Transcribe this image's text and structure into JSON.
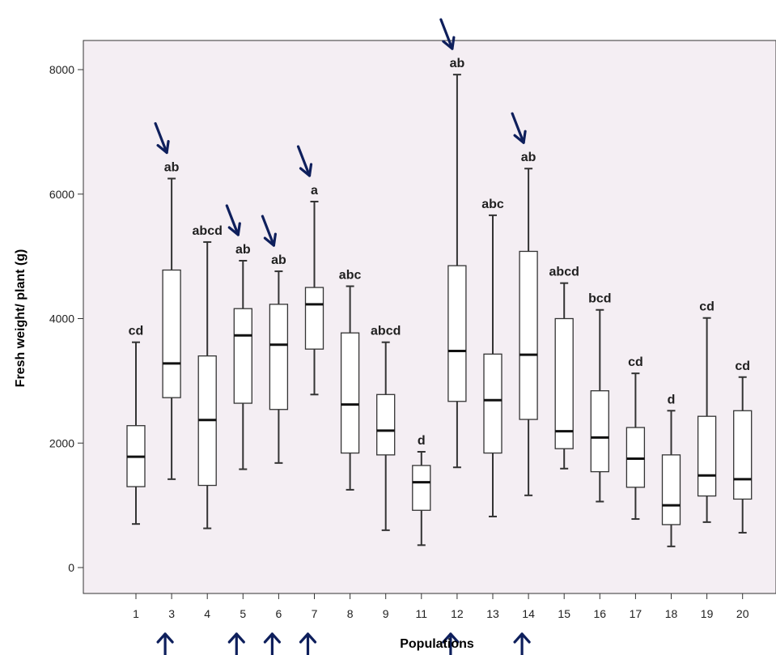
{
  "chart_data": {
    "type": "boxplot",
    "title": "",
    "xlabel": "Populations",
    "ylabel": "Fresh weight/ plant (g)",
    "ylim": [
      -400,
      8450
    ],
    "yticks": [
      0,
      2000,
      4000,
      6000,
      8000
    ],
    "grid": false,
    "legend": "none",
    "colors": {
      "plot_background": "#f4eef3",
      "box_fill": "#ffffff",
      "stroke": "#333333",
      "arrow": "#0e1f5c",
      "text": "#1f1f1f"
    },
    "groups": [
      {
        "population": "1",
        "letter": "cd",
        "min": 700,
        "q1": 1300,
        "median": 1780,
        "q3": 2280,
        "max": 3620,
        "marked": false
      },
      {
        "population": "3",
        "letter": "ab",
        "min": 1420,
        "q1": 2730,
        "median": 3280,
        "q3": 4780,
        "max": 6250,
        "marked": true
      },
      {
        "population": "4",
        "letter": "abcd",
        "min": 630,
        "q1": 1320,
        "median": 2370,
        "q3": 3400,
        "max": 5230,
        "marked": false
      },
      {
        "population": "5",
        "letter": "ab",
        "min": 1580,
        "q1": 2640,
        "median": 3730,
        "q3": 4160,
        "max": 4930,
        "marked": true
      },
      {
        "population": "6",
        "letter": "ab",
        "min": 1680,
        "q1": 2540,
        "median": 3580,
        "q3": 4230,
        "max": 4760,
        "marked": true
      },
      {
        "population": "7",
        "letter": "a",
        "min": 2780,
        "q1": 3510,
        "median": 4230,
        "q3": 4500,
        "max": 5880,
        "marked": true
      },
      {
        "population": "8",
        "letter": "abc",
        "min": 1250,
        "q1": 1840,
        "median": 2620,
        "q3": 3770,
        "max": 4520,
        "marked": false
      },
      {
        "population": "9",
        "letter": "abcd",
        "min": 600,
        "q1": 1810,
        "median": 2200,
        "q3": 2780,
        "max": 3620,
        "marked": false
      },
      {
        "population": "11",
        "letter": "d",
        "min": 360,
        "q1": 920,
        "median": 1370,
        "q3": 1640,
        "max": 1860,
        "marked": false
      },
      {
        "population": "12",
        "letter": "ab",
        "min": 1610,
        "q1": 2670,
        "median": 3480,
        "q3": 4850,
        "max": 7920,
        "marked": true
      },
      {
        "population": "13",
        "letter": "abc",
        "min": 820,
        "q1": 1840,
        "median": 2690,
        "q3": 3430,
        "max": 5660,
        "marked": false
      },
      {
        "population": "14",
        "letter": "ab",
        "min": 1160,
        "q1": 2380,
        "median": 3420,
        "q3": 5080,
        "max": 6410,
        "marked": true
      },
      {
        "population": "15",
        "letter": "abcd",
        "min": 1590,
        "q1": 1910,
        "median": 2190,
        "q3": 4000,
        "max": 4570,
        "marked": false
      },
      {
        "population": "16",
        "letter": "bcd",
        "min": 1060,
        "q1": 1540,
        "median": 2090,
        "q3": 2840,
        "max": 4140,
        "marked": false
      },
      {
        "population": "17",
        "letter": "cd",
        "min": 780,
        "q1": 1290,
        "median": 1750,
        "q3": 2250,
        "max": 3120,
        "marked": false
      },
      {
        "population": "18",
        "letter": "d",
        "min": 340,
        "q1": 690,
        "median": 1000,
        "q3": 1810,
        "max": 2520,
        "marked": false
      },
      {
        "population": "19",
        "letter": "cd",
        "min": 730,
        "q1": 1150,
        "median": 1480,
        "q3": 2430,
        "max": 4010,
        "marked": false
      },
      {
        "population": "20",
        "letter": "cd",
        "min": 560,
        "q1": 1100,
        "median": 1420,
        "q3": 2520,
        "max": 3060,
        "marked": false
      }
    ]
  }
}
